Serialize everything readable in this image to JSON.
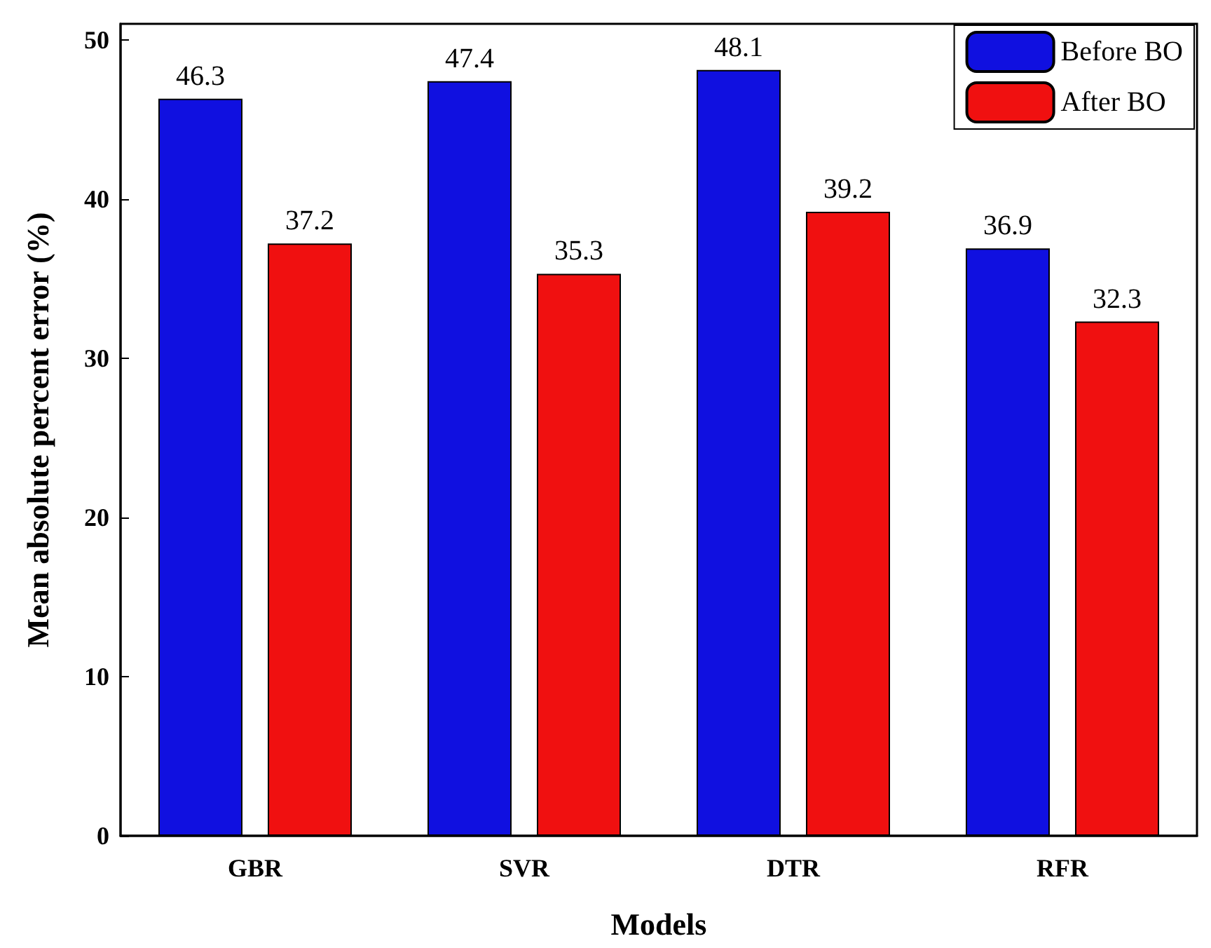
{
  "chart_data": {
    "type": "bar",
    "xlabel": "Models",
    "ylabel": "Mean absolute percent error (%)",
    "categories": [
      "GBR",
      "SVR",
      "DTR",
      "RFR"
    ],
    "series": [
      {
        "name": "Before BO",
        "color": "#1010e0",
        "values": [
          46.3,
          47.4,
          48.1,
          36.9
        ]
      },
      {
        "name": "After BO",
        "color": "#f01010",
        "values": [
          37.2,
          35.3,
          39.2,
          32.3
        ]
      }
    ],
    "ylim": [
      0,
      51
    ],
    "yticks": [
      0,
      10,
      20,
      30,
      40,
      50
    ],
    "grid": false,
    "legend": "top right",
    "data_labels": true
  }
}
